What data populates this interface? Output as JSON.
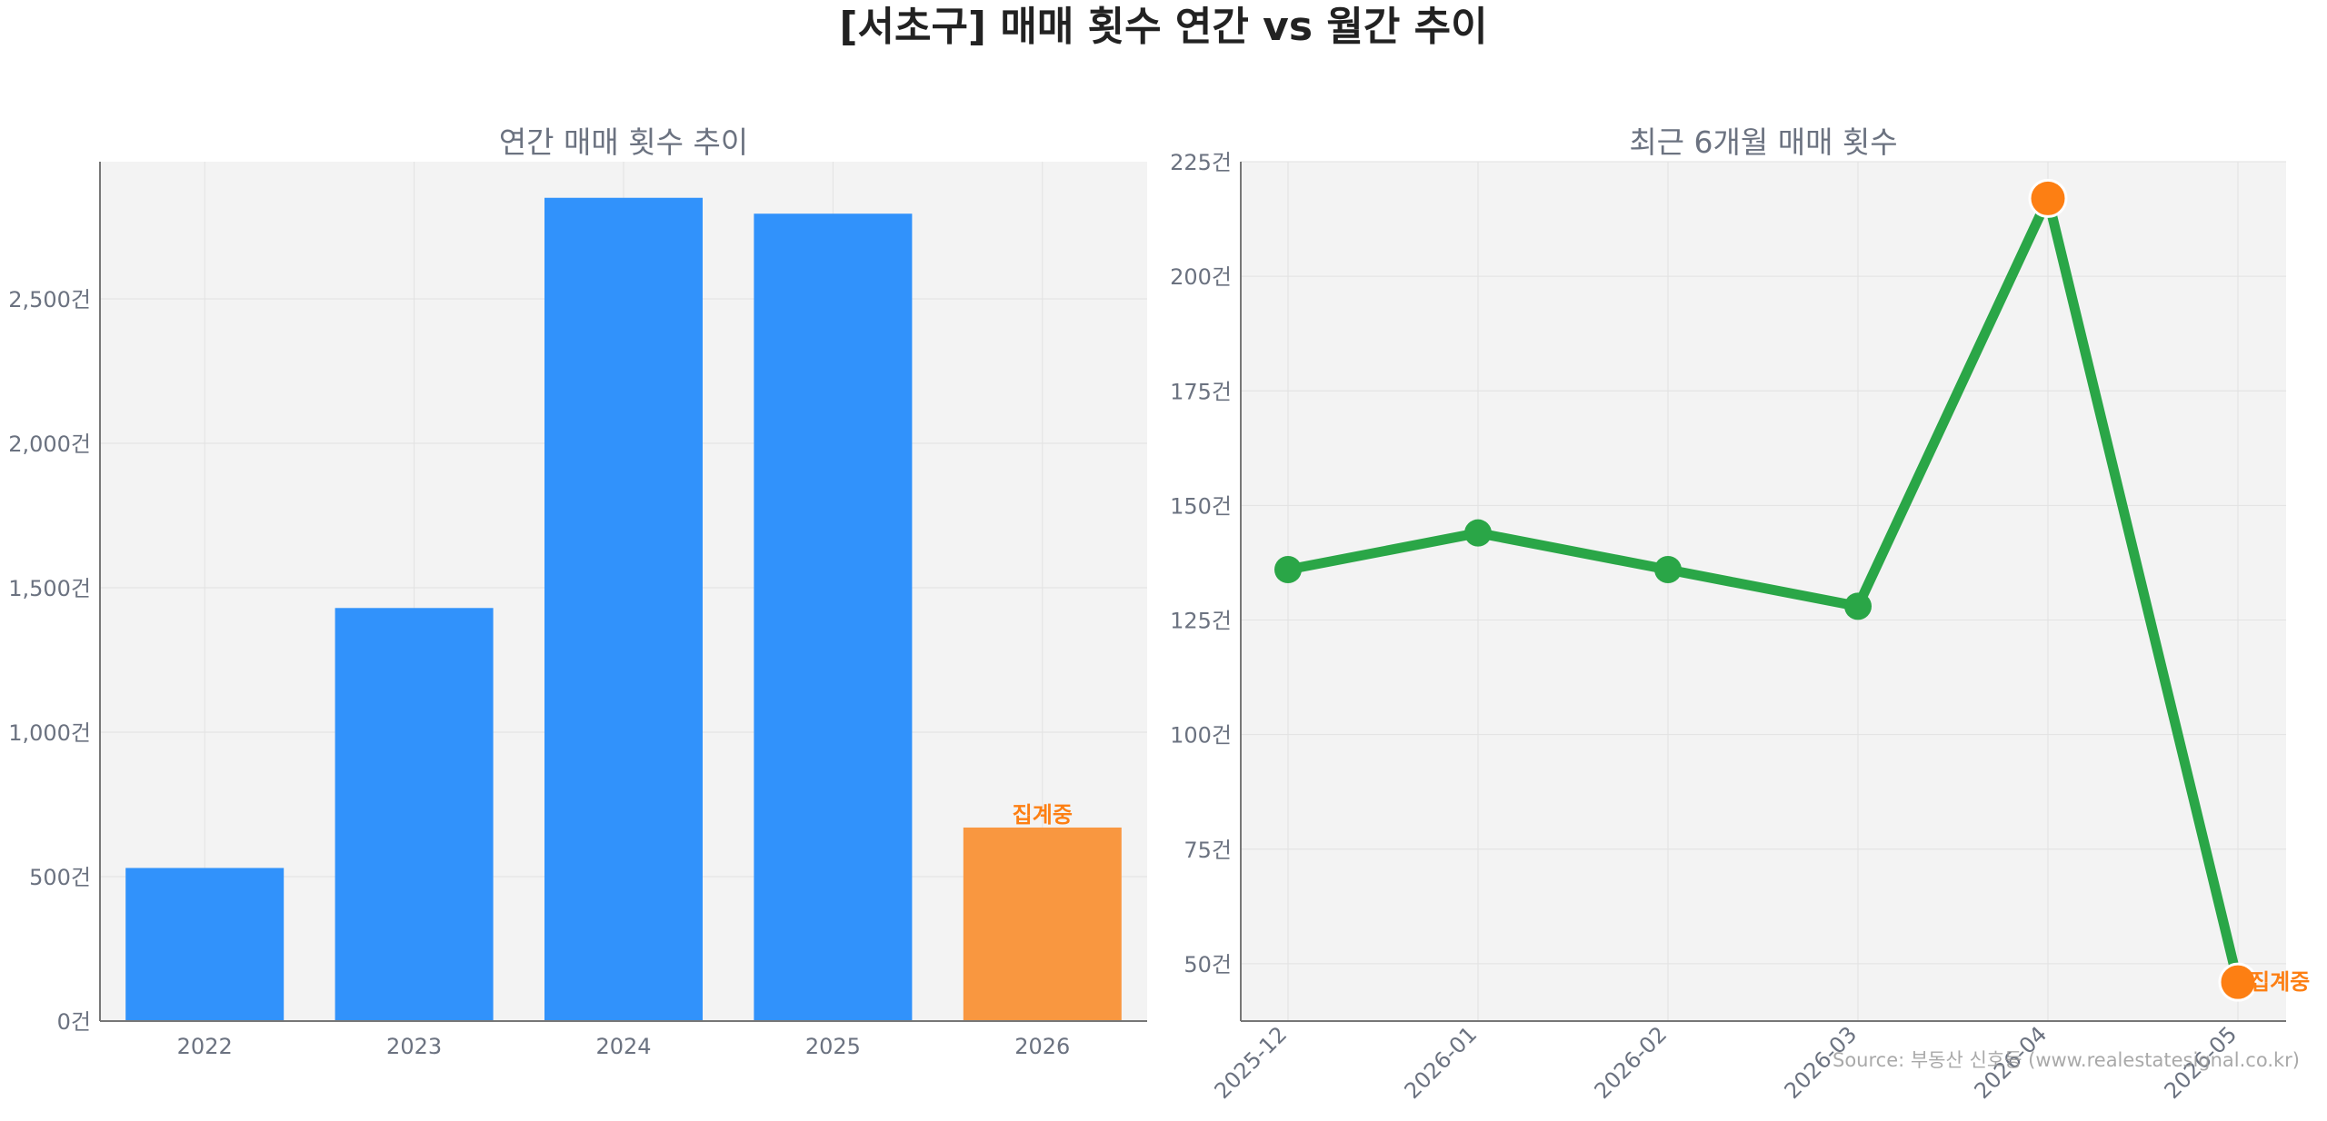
{
  "figure": {
    "title": "[서초구] 매매 횟수 연간 vs 월간 추이",
    "source": "Source: 부동산 신호등 (www.realestatesignal.co.kr)"
  },
  "colors": {
    "bar": "#3192fb",
    "highlight": "#f99740",
    "line": "#2aa647",
    "marker_orange": "#fd7f13",
    "axis_text": "#6b7280",
    "plot_bg": "#f3f3f3"
  },
  "chart_data": [
    {
      "type": "bar",
      "title": "연간 매매 횟수 추이",
      "categories": [
        "2022",
        "2023",
        "2024",
        "2025",
        "2026"
      ],
      "values": [
        530,
        1430,
        2850,
        2795,
        670
      ],
      "ylim": [
        0,
        2975
      ],
      "yticks": [
        0,
        500,
        1000,
        1500,
        2000,
        2500
      ],
      "ytick_labels": [
        "0건",
        "500건",
        "1,000건",
        "1,500건",
        "2,000건",
        "2,500건"
      ],
      "highlight_index": 4,
      "highlight_label": "집계중",
      "grid": true,
      "xlabel": "",
      "ylabel": ""
    },
    {
      "type": "line",
      "title": "최근 6개월 매매 횟수",
      "x": [
        "2025-12",
        "2026-01",
        "2026-02",
        "2026-03",
        "2026-04",
        "2026-05"
      ],
      "values": [
        136,
        144,
        136,
        128,
        217,
        46
      ],
      "ylim": [
        37.5,
        225
      ],
      "yticks": [
        50,
        75,
        100,
        125,
        150,
        175,
        200,
        225
      ],
      "ytick_labels": [
        "50건",
        "75건",
        "100건",
        "125건",
        "150건",
        "175건",
        "200건",
        "225건"
      ],
      "highlight_indices": [
        4,
        5
      ],
      "highlight_label": "집계중",
      "grid": true,
      "xlabel": "",
      "ylabel": ""
    }
  ]
}
